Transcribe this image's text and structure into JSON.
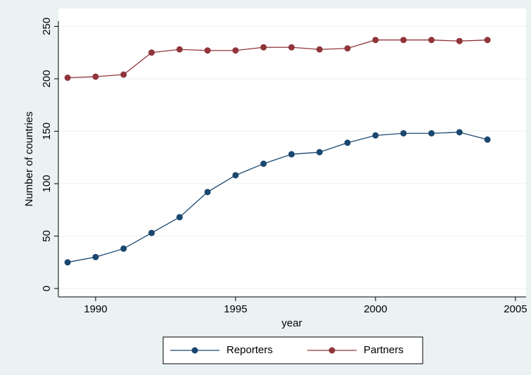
{
  "chart_data": {
    "type": "line",
    "x": [
      1989,
      1990,
      1991,
      1992,
      1993,
      1994,
      1995,
      1996,
      1997,
      1998,
      1999,
      2000,
      2001,
      2002,
      2003,
      2004
    ],
    "series": [
      {
        "name": "Reporters",
        "color": "#1a476f",
        "values": [
          25,
          30,
          38,
          53,
          68,
          92,
          108,
          119,
          128,
          130,
          139,
          146,
          148,
          148,
          149,
          142
        ]
      },
      {
        "name": "Partners",
        "color": "#90353b",
        "values": [
          201,
          202,
          204,
          225,
          228,
          227,
          227,
          230,
          230,
          228,
          229,
          237,
          237,
          237,
          236,
          237
        ]
      }
    ],
    "xlabel": "year",
    "ylabel": "Number of countries",
    "xlim": [
      1988.67,
      2005.38
    ],
    "xticks": [
      1990,
      1995,
      2000,
      2005
    ],
    "ylim": [
      -8,
      255
    ],
    "yticks": [
      0,
      50,
      100,
      150,
      200,
      250
    ],
    "grid": true,
    "legend": "bottom"
  }
}
